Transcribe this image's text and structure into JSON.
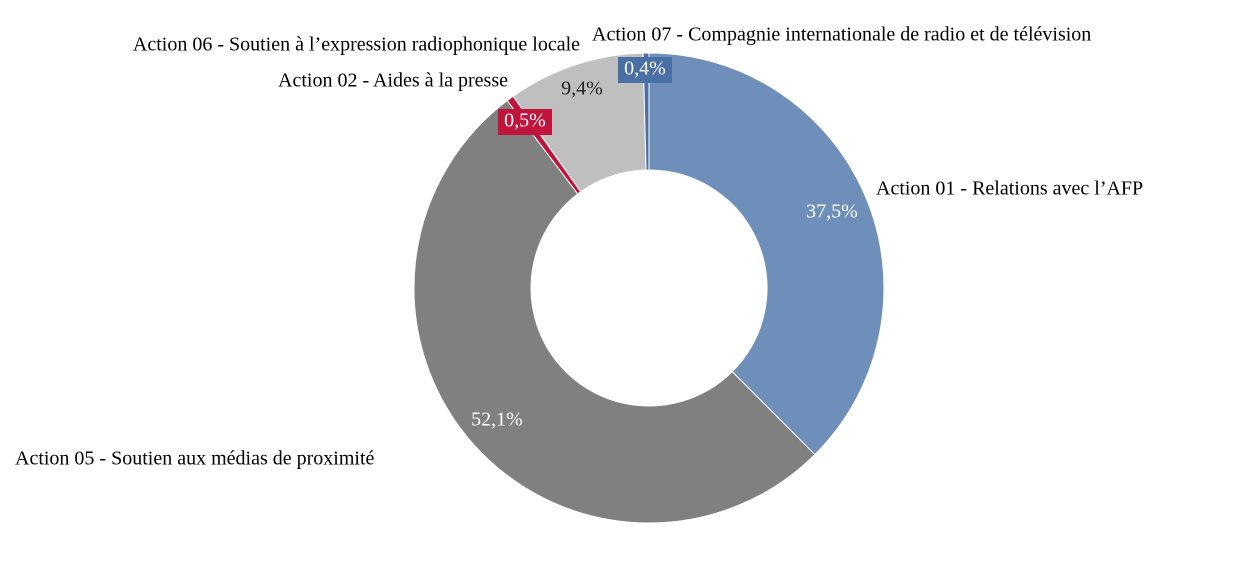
{
  "chart_data": {
    "type": "donut",
    "categories": [
      "Action 01 - Relations avec l’AFP",
      "Action 05 - Soutien aux médias de proximité",
      "Action 02 - Aides à la presse",
      "Action 06 - Soutien à l’expression radiophonique locale",
      "Action 07 - Compagnie internationale de radio et de télévision"
    ],
    "values": [
      37.5,
      52.1,
      0.5,
      9.4,
      0.4
    ],
    "value_labels": [
      "37,5%",
      "52,1%",
      "0,5%",
      "9,4%",
      "0,4%"
    ],
    "colors": [
      "#6f8fbb",
      "#808080",
      "#c0143c",
      "#bfbfbf",
      "#4a6fa5"
    ]
  }
}
